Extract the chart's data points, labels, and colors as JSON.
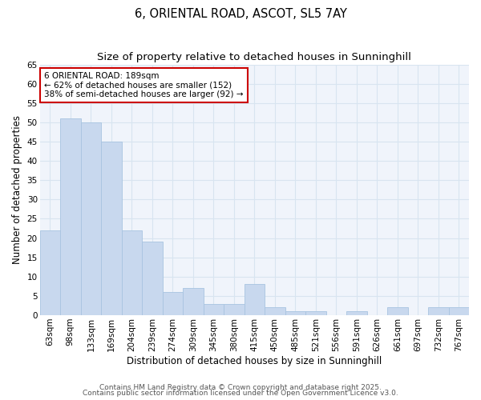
{
  "title1": "6, ORIENTAL ROAD, ASCOT, SL5 7AY",
  "title2": "Size of property relative to detached houses in Sunninghill",
  "xlabel": "Distribution of detached houses by size in Sunninghill",
  "ylabel": "Number of detached properties",
  "categories": [
    "63sqm",
    "98sqm",
    "133sqm",
    "169sqm",
    "204sqm",
    "239sqm",
    "274sqm",
    "309sqm",
    "345sqm",
    "380sqm",
    "415sqm",
    "450sqm",
    "485sqm",
    "521sqm",
    "556sqm",
    "591sqm",
    "626sqm",
    "661sqm",
    "697sqm",
    "732sqm",
    "767sqm"
  ],
  "values": [
    22,
    51,
    50,
    45,
    22,
    19,
    6,
    7,
    3,
    3,
    8,
    2,
    1,
    1,
    0,
    1,
    0,
    2,
    0,
    2,
    2
  ],
  "bar_color": "#c8d8ee",
  "bar_edge_color": "#a8c4e0",
  "fig_background_color": "#ffffff",
  "plot_background_color": "#f0f4fb",
  "grid_color": "#d8e4f0",
  "annotation_box_edge_color": "#cc0000",
  "annotation_box_face_color": "#ffffff",
  "annotation_text_line1": "6 ORIENTAL ROAD: 189sqm",
  "annotation_text_line2": "← 62% of detached houses are smaller (152)",
  "annotation_text_line3": "38% of semi-detached houses are larger (92) →",
  "ylim": [
    0,
    65
  ],
  "yticks": [
    0,
    5,
    10,
    15,
    20,
    25,
    30,
    35,
    40,
    45,
    50,
    55,
    60,
    65
  ],
  "footnote1": "Contains HM Land Registry data © Crown copyright and database right 2025.",
  "footnote2": "Contains public sector information licensed under the Open Government Licence v3.0.",
  "title_fontsize": 10.5,
  "subtitle_fontsize": 9.5,
  "axis_label_fontsize": 8.5,
  "tick_fontsize": 7.5,
  "annotation_fontsize": 7.5,
  "footnote_fontsize": 6.5
}
